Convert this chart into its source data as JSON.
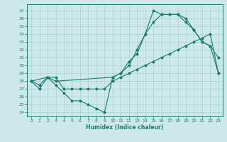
{
  "xlabel": "Humidex (Indice chaleur)",
  "bg_color": "#cce8e8",
  "line_color": "#1a7a6e",
  "grid_color": "#aad0d0",
  "xlim": [
    -0.5,
    23.5
  ],
  "ylim": [
    23.5,
    37.8
  ],
  "xticks": [
    0,
    1,
    2,
    3,
    4,
    5,
    6,
    7,
    8,
    9,
    10,
    11,
    12,
    13,
    14,
    15,
    16,
    17,
    18,
    19,
    20,
    21,
    22,
    23
  ],
  "yticks": [
    24,
    25,
    26,
    27,
    28,
    29,
    30,
    31,
    32,
    33,
    34,
    35,
    36,
    37
  ],
  "line1_x": [
    0,
    1,
    2,
    3,
    4,
    5,
    6,
    7,
    8,
    9,
    10,
    11,
    12,
    13,
    14,
    15,
    16,
    17,
    18,
    19,
    20,
    21,
    22,
    23
  ],
  "line1_y": [
    28.0,
    27.5,
    28.5,
    28.5,
    27.0,
    27.0,
    27.0,
    27.0,
    27.0,
    27.0,
    28.0,
    28.5,
    29.0,
    29.5,
    30.0,
    30.5,
    31.0,
    31.5,
    32.0,
    32.5,
    33.0,
    33.5,
    34.0,
    29.0
  ],
  "line2_x": [
    0,
    1,
    2,
    3,
    4,
    5,
    6,
    7,
    8,
    9,
    10,
    11,
    12,
    13,
    14,
    15,
    16,
    17,
    18,
    19,
    20,
    21,
    22,
    23
  ],
  "line2_y": [
    28.0,
    27.0,
    28.5,
    27.5,
    26.5,
    25.5,
    25.5,
    25.0,
    24.5,
    24.0,
    28.5,
    29.0,
    30.0,
    32.0,
    34.0,
    37.0,
    36.5,
    36.5,
    36.5,
    36.0,
    34.5,
    33.0,
    32.5,
    31.0
  ],
  "line3_x": [
    0,
    2,
    3,
    10,
    11,
    12,
    13,
    14,
    15,
    16,
    17,
    18,
    19,
    20,
    21,
    22,
    23
  ],
  "line3_y": [
    28.0,
    28.5,
    28.0,
    28.5,
    29.0,
    30.5,
    31.5,
    34.0,
    35.5,
    36.5,
    36.5,
    36.5,
    35.5,
    34.5,
    33.0,
    32.5,
    29.0
  ]
}
